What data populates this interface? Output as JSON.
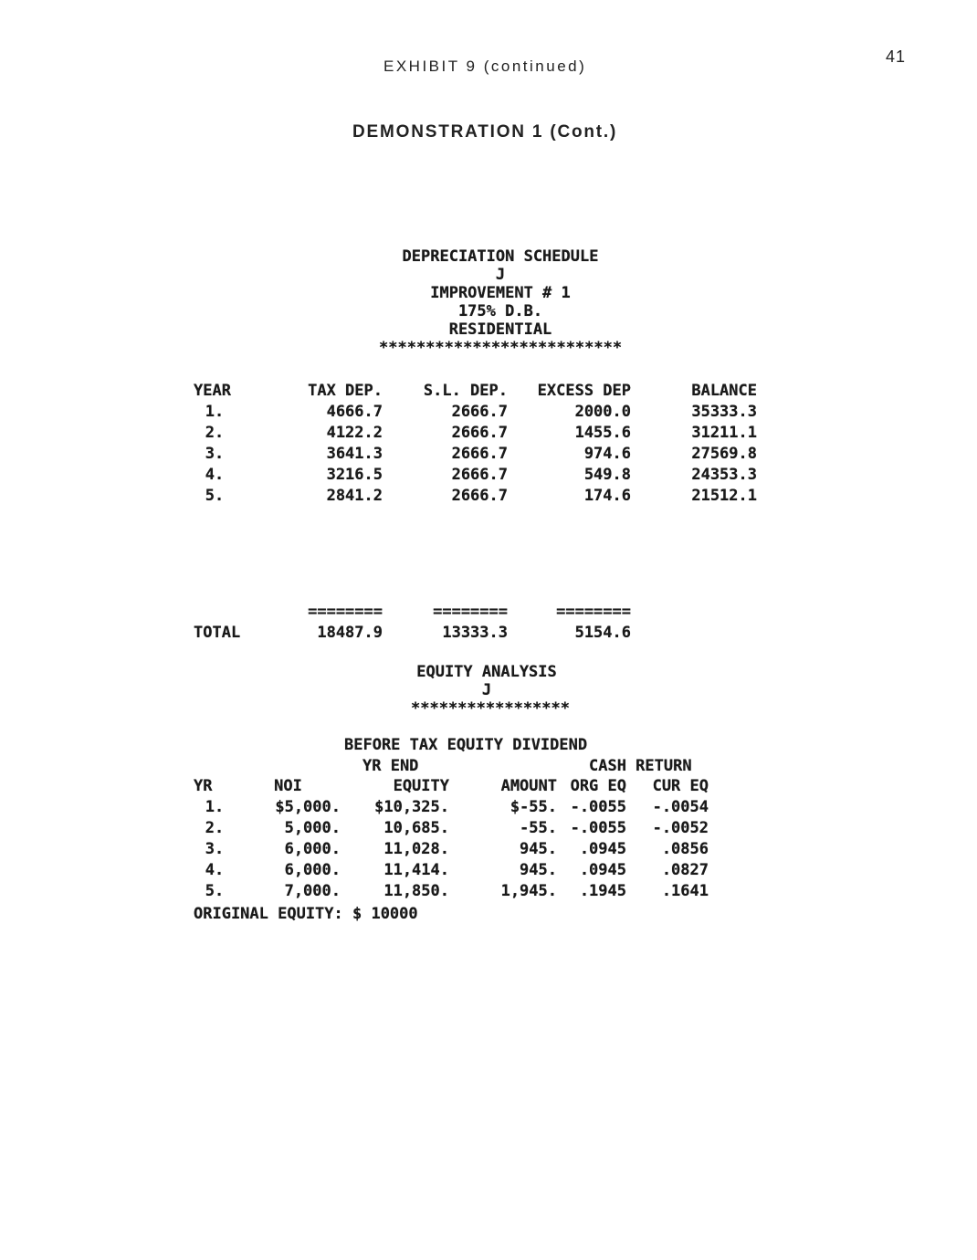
{
  "header": {
    "exhibit_title": "EXHIBIT 9 (continued)",
    "page_number": "41",
    "demo_title": "DEMONSTRATION 1 (Cont.)"
  },
  "depreciation_schedule": {
    "heading": {
      "title": "DEPRECIATION SCHEDULE",
      "subtitle": "J",
      "improvement": "IMPROVEMENT # 1",
      "method": "175% D.B.",
      "property_type": "RESIDENTIAL",
      "separator": "**************************"
    },
    "table": {
      "headers": [
        "YEAR",
        "TAX DEP.",
        "S.L. DEP.",
        "EXCESS DEP",
        "BALANCE"
      ],
      "rows": [
        [
          "1.",
          "4666.7",
          "2666.7",
          "2000.0",
          "35333.3"
        ],
        [
          "2.",
          "4122.2",
          "2666.7",
          "1455.6",
          "31211.1"
        ],
        [
          "3.",
          "3641.3",
          "2666.7",
          "974.6",
          "27569.8"
        ],
        [
          "4.",
          "3216.5",
          "2666.7",
          "549.8",
          "24353.3"
        ],
        [
          "5.",
          "2841.2",
          "2666.7",
          "174.6",
          "21512.1"
        ]
      ],
      "separator_row": [
        "",
        "========",
        "========",
        "========",
        ""
      ],
      "total_row": [
        "TOTAL",
        "18487.9",
        "13333.3",
        "5154.6",
        ""
      ]
    }
  },
  "equity_analysis": {
    "heading": {
      "title": "EQUITY ANALYSIS",
      "subtitle": "J",
      "separator": "*****************"
    },
    "section_title": "BEFORE TAX EQUITY DIVIDEND",
    "column_groups": {
      "yr_end": "YR END",
      "cash_return": "CASH RETURN"
    },
    "table": {
      "headers": [
        "YR",
        "NOI",
        "EQUITY",
        "AMOUNT",
        "ORG EQ",
        "CUR EQ"
      ],
      "rows": [
        [
          "1.",
          "$5,000.",
          "$10,325.",
          "$-55.",
          "-.0055",
          "-.0054"
        ],
        [
          "2.",
          "5,000.",
          "10,685.",
          "-55.",
          "-.0055",
          "-.0052"
        ],
        [
          "3.",
          "6,000.",
          "11,028.",
          "945.",
          ".0945",
          ".0856"
        ],
        [
          "4.",
          "6,000.",
          "11,414.",
          "945.",
          ".0945",
          ".0827"
        ],
        [
          "5.",
          "7,000.",
          "11,850.",
          "1,945.",
          ".1945",
          ".1641"
        ]
      ]
    },
    "footer": "ORIGINAL EQUITY: $ 10000"
  }
}
